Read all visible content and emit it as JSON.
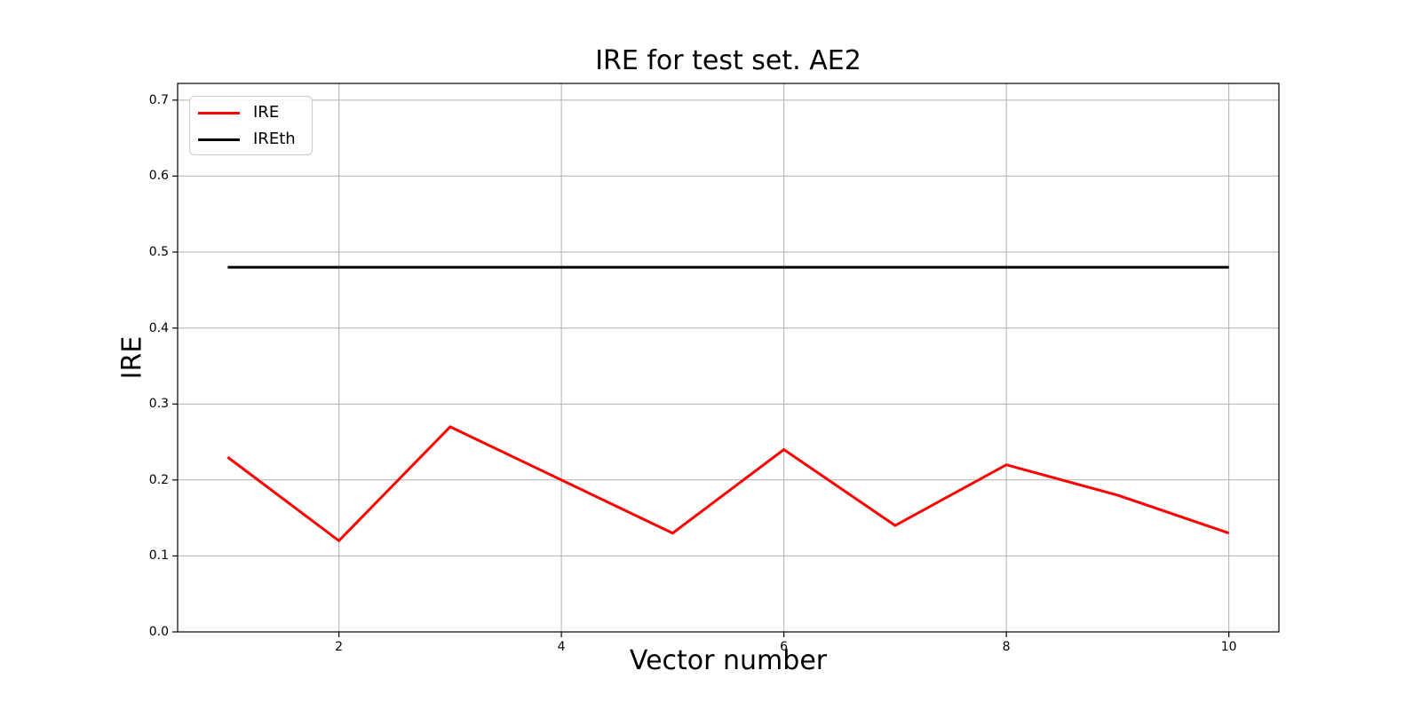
{
  "figure": {
    "background": "#ffffff",
    "grid_color": "#b0b0b0",
    "spine_color": "#000000",
    "tick_color": "#000000"
  },
  "chart_data": {
    "type": "line",
    "title": "IRE for test set. AE2",
    "xlabel": "Vector number",
    "ylabel": "IRE",
    "x": [
      1,
      2,
      3,
      4,
      5,
      6,
      7,
      8,
      9,
      10
    ],
    "series": [
      {
        "name": "IRE",
        "color": "#ff0000",
        "values": [
          0.23,
          0.12,
          0.27,
          0.2,
          0.13,
          0.24,
          0.14,
          0.22,
          0.18,
          0.13
        ]
      },
      {
        "name": "IREth",
        "color": "#000000",
        "values": [
          0.48,
          0.48,
          0.48,
          0.48,
          0.48,
          0.48,
          0.48,
          0.48,
          0.48,
          0.48
        ]
      }
    ],
    "xlim": [
      0.55,
      10.45
    ],
    "ylim": [
      0,
      0.722
    ],
    "xticks": {
      "values": [
        2,
        4,
        6,
        8,
        10
      ],
      "labels": [
        "2",
        "4",
        "6",
        "8",
        "10"
      ]
    },
    "yticks": {
      "values": [
        0.0,
        0.1,
        0.2,
        0.3,
        0.4,
        0.5,
        0.6,
        0.7
      ],
      "labels": [
        "0.0",
        "0.1",
        "0.2",
        "0.3",
        "0.4",
        "0.5",
        "0.6",
        "0.7"
      ]
    },
    "grid": true,
    "legend": {
      "position": "upper left",
      "entries": [
        "IRE",
        "IREth"
      ]
    }
  }
}
